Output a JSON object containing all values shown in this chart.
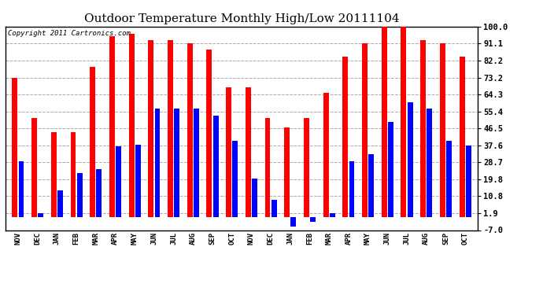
{
  "title": "Outdoor Temperature Monthly High/Low 20111104",
  "copyright": "Copyright 2011 Cartronics.com",
  "months": [
    "NOV",
    "DEC",
    "JAN",
    "FEB",
    "MAR",
    "APR",
    "MAY",
    "JUN",
    "JUL",
    "AUG",
    "SEP",
    "OCT",
    "NOV",
    "DEC",
    "JAN",
    "FEB",
    "MAR",
    "APR",
    "MAY",
    "JUN",
    "JUL",
    "AUG",
    "SEP",
    "OCT"
  ],
  "highs": [
    73.2,
    52.0,
    44.5,
    44.5,
    79.0,
    95.0,
    96.0,
    93.0,
    93.0,
    91.1,
    88.0,
    68.0,
    68.0,
    52.0,
    47.0,
    52.0,
    65.0,
    84.0,
    91.1,
    100.0,
    100.0,
    93.0,
    91.1,
    84.0
  ],
  "lows": [
    29.0,
    2.0,
    14.0,
    23.0,
    25.0,
    37.0,
    38.0,
    57.0,
    57.0,
    57.0,
    53.0,
    40.0,
    20.0,
    9.0,
    -5.0,
    -2.5,
    1.9,
    29.0,
    33.0,
    50.0,
    60.0,
    57.0,
    40.0,
    37.6
  ],
  "yticks": [
    -7.0,
    1.9,
    10.8,
    19.8,
    28.7,
    37.6,
    46.5,
    55.4,
    64.3,
    73.2,
    82.2,
    91.1,
    100.0
  ],
  "ylim": [
    -7.0,
    100.0
  ],
  "bar_width": 0.28,
  "bar_gap": 0.05,
  "high_color": "#ff0000",
  "low_color": "#0000ff",
  "bg_color": "#ffffff",
  "grid_color": "#aaaaaa",
  "title_fontsize": 11,
  "copyright_fontsize": 6.5,
  "tick_fontsize": 7.5,
  "xtick_fontsize": 6.5
}
